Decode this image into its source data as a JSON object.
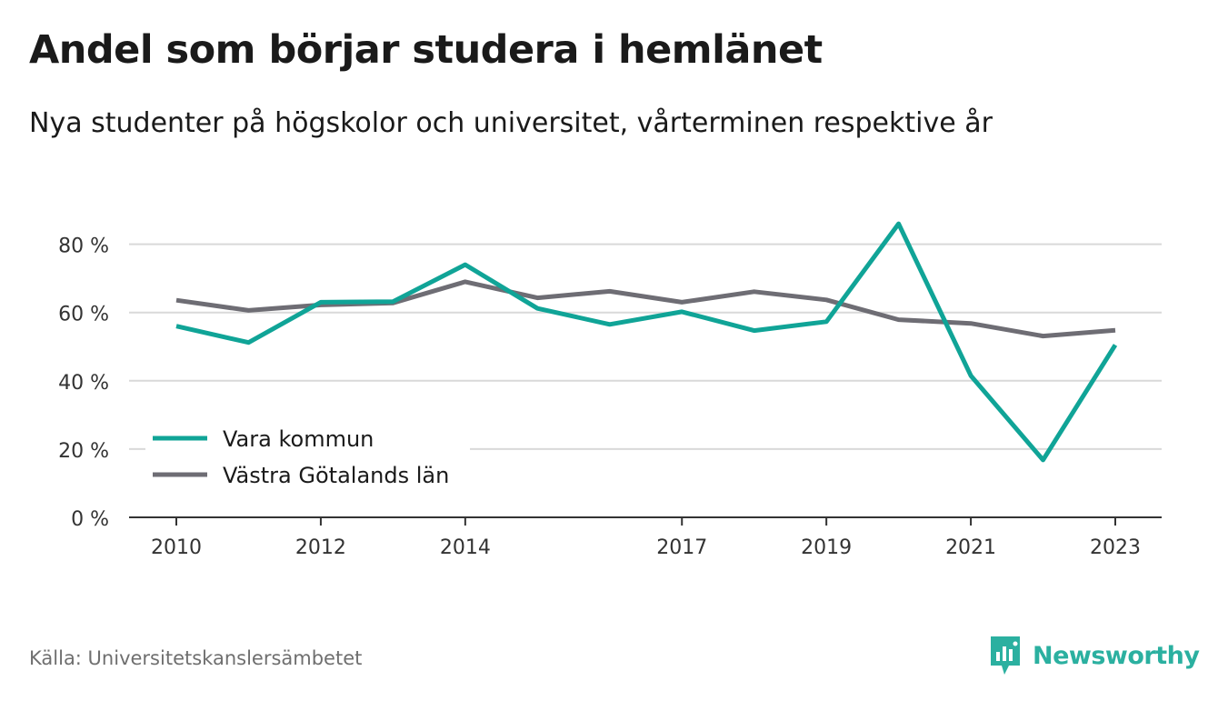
{
  "title": "Andel som börjar studera i hemlänet",
  "subtitle": "Nya studenter på högskolor och universitet, vårterminen respektive år",
  "source": "Källa: Universitetskanslersämbetet",
  "brand": "Newsworthy",
  "colors": {
    "accent": "#10a497",
    "secondary": "#6e6d74",
    "grid": "#d9d9d9",
    "axis": "#333333"
  },
  "chart_data": {
    "type": "line",
    "x": [
      2010,
      2011,
      2012,
      2013,
      2014,
      2015,
      2016,
      2017,
      2018,
      2019,
      2020,
      2021,
      2022,
      2023
    ],
    "x_tick_labels": [
      "2010",
      "2012",
      "2014",
      "2017",
      "2019",
      "2021",
      "2023"
    ],
    "y_tick_labels": [
      "0 %",
      "20 %",
      "40 %",
      "60 %",
      "80 %"
    ],
    "y_ticks": [
      0,
      20,
      40,
      60,
      80
    ],
    "ylim": [
      0,
      92
    ],
    "grid": true,
    "legend_position": "bottom-left",
    "series": [
      {
        "name": "Vara kommun",
        "color": "#10a497",
        "values": [
          56,
          51.2,
          63,
          63.2,
          74,
          61.2,
          56.5,
          60.2,
          54.7,
          57.3,
          86,
          41.5,
          16.8,
          50.5
        ]
      },
      {
        "name": "Västra Götalands län",
        "color": "#6e6d74",
        "values": [
          63.6,
          60.6,
          62.2,
          62.8,
          69,
          64.3,
          66.2,
          63,
          66.1,
          63.7,
          57.9,
          56.8,
          53.1,
          54.8
        ]
      }
    ]
  }
}
